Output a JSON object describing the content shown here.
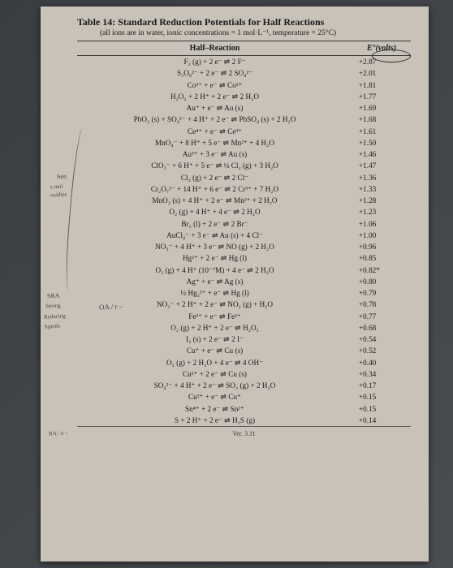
{
  "title": "Table 14: Standard Reduction Potentials for Half Reactions",
  "subtitle": "(all ions are in water, ionic concentrations = 1 mol·L⁻¹, temperature = 25°C)",
  "columns": {
    "reaction": "Half–Reaction",
    "volts": "E°(volts)"
  },
  "rows": [
    {
      "rx": "F₂ (g) + 2 e⁻ ⇌ 2 F⁻",
      "volt": "+2.87"
    },
    {
      "rx": "S₂O₈²⁻ + 2 e⁻ ⇌ 2 SO₄²⁻",
      "volt": "+2.01"
    },
    {
      "rx": "Co³⁺ + e⁻ ⇌ Co²⁺",
      "volt": "+1.81"
    },
    {
      "rx": "H₂O₂ + 2 H⁺ + 2 e⁻ ⇌ 2 H₂O",
      "volt": "+1.77"
    },
    {
      "rx": "Au⁺ + e⁻ ⇌ Au (s)",
      "volt": "+1.69"
    },
    {
      "rx": "PbO₂ (s) + SO₄²⁻ + 4 H⁺ + 2 e⁻ ⇌ PbSO₄ (s) + 2 H₂O",
      "volt": "+1.68"
    },
    {
      "rx": "Ce⁴⁺ + e⁻ ⇌ Ce³⁺",
      "volt": "+1.61"
    },
    {
      "rx": "MnO₄⁻ + 8 H⁺ + 5 e⁻ ⇌ Mn²⁺ + 4 H₂O",
      "volt": "+1.50"
    },
    {
      "rx": "Au³⁺ + 3 e⁻ ⇌ Au (s)",
      "volt": "+1.46"
    },
    {
      "rx": "ClO₃⁻ + 6 H⁺ + 5 e⁻ ⇌ ½ Cl₂ (g) + 3 H₂O",
      "volt": "+1.47"
    },
    {
      "rx": "Cl₂ (g) + 2 e⁻ ⇌ 2 Cl⁻",
      "volt": "+1.36"
    },
    {
      "rx": "Cr₂O₇²⁻ + 14 H⁺ + 6 e⁻ ⇌ 2 Cr³⁺ + 7 H₂O",
      "volt": "+1.33"
    },
    {
      "rx": "MnO₂ (s) + 4 H⁺ + 2 e⁻ ⇌ Mn²⁺ + 2 H₂O",
      "volt": "+1.28"
    },
    {
      "rx": "O₂ (g) + 4 H⁺ + 4 e⁻ ⇌ 2 H₂O",
      "volt": "+1.23"
    },
    {
      "rx": "Br₂ (l) + 2 e⁻ ⇌ 2 Br⁻",
      "volt": "+1.06"
    },
    {
      "rx": "AuCl₄⁻ + 3 e⁻ ⇌ Au (s) + 4 Cl⁻",
      "volt": "+1.00"
    },
    {
      "rx": "NO₃⁻ + 4 H⁺ + 3 e⁻ ⇌ NO (g) + 2 H₂O",
      "volt": "+0.96"
    },
    {
      "rx": "Hg²⁺ + 2 e⁻ ⇌ Hg (l)",
      "volt": "+0.85"
    },
    {
      "rx": "O₂ (g) + 4 H⁺ (10⁻⁷M) + 4 e⁻ ⇌ 2 H₂O",
      "volt": "+0.82*"
    },
    {
      "rx": "Ag⁺ + e⁻ ⇌ Ag (s)",
      "volt": "+0.80"
    },
    {
      "rx": "½ Hg₂²⁺ + e⁻ ⇌ Hg (l)",
      "volt": "+0.79"
    },
    {
      "rx": "NO₃⁻ + 2 H⁺ + 2 e⁻ ⇌ NO₂ (g) + H₂O",
      "volt": "+0.78"
    },
    {
      "rx": "Fe³⁺ + e⁻ ⇌ Fe²⁺",
      "volt": "+0.77"
    },
    {
      "rx": "O₂ (g) + 2 H⁺ + 2 e⁻ ⇌ H₂O₂",
      "volt": "+0.68"
    },
    {
      "rx": "I₂ (s) + 2 e⁻ ⇌ 2 I⁻",
      "volt": "+0.54"
    },
    {
      "rx": "Cu⁺ + e⁻ ⇌ Cu (s)",
      "volt": "+0.52"
    },
    {
      "rx": "O₂ (g) + 2 H₂O + 4 e⁻ ⇌ 4 OH⁻",
      "volt": "+0.40"
    },
    {
      "rx": "Cu²⁺ + 2 e⁻ ⇌ Cu (s)",
      "volt": "+0.34"
    },
    {
      "rx": "SO₄²⁻ + 4 H⁺ + 2 e⁻ ⇌ SO₂ (g) + 2 H₂O",
      "volt": "+0.17"
    },
    {
      "rx": "Cu²⁺ + e⁻ ⇌ Cu⁺",
      "volt": "+0.15"
    },
    {
      "rx": "Sn⁴⁺ + 2 e⁻ ⇌ Sn²⁺",
      "volt": "+0.15"
    },
    {
      "rx": "S + 2 H⁺ + 2 e⁻ ⇌ H₂S (g)",
      "volt": "+0.14"
    }
  ],
  "handwriting": {
    "h1": "Sen",
    "h2": "s mol",
    "h3": "oxidize",
    "h4": "SRA",
    "h5": "Strong",
    "h6": "Reducing",
    "h7": "Agents",
    "h8": "RA / o –",
    "h9": "OA / r –"
  },
  "footer": "Ver. 3.11"
}
